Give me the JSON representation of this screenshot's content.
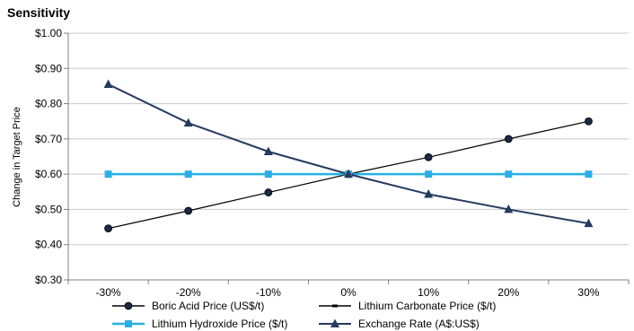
{
  "chart_data": {
    "type": "line",
    "title": "Sensitivity",
    "xlabel": "",
    "ylabel": "Change in Target Price",
    "categories": [
      "-30%",
      "-20%",
      "-10%",
      "0%",
      "10%",
      "20%",
      "30%"
    ],
    "ylim": [
      0.3,
      1.0
    ],
    "yticks": [
      1.0,
      0.9,
      0.8,
      0.7,
      0.6,
      0.5,
      0.4,
      0.3
    ],
    "ytick_labels": [
      "$1.00",
      "$0.90",
      "$0.80",
      "$0.70",
      "$0.60",
      "$0.50",
      "$0.40",
      "$0.30"
    ],
    "grid": "horizontal",
    "legend_position": "bottom",
    "series": [
      {
        "name": "Boric Acid Price (US$/t)",
        "color": "#000000",
        "marker": "circle",
        "marker_color": "#1b2a44",
        "values": [
          0.446,
          0.496,
          0.548,
          0.6,
          0.648,
          0.7,
          0.75
        ]
      },
      {
        "name": "Lithium Carbonate Price ($/t)",
        "color": "#000000",
        "marker": "dash",
        "values": [
          0.6,
          0.6,
          0.6,
          0.6,
          0.6,
          0.6,
          0.6
        ]
      },
      {
        "name": "Lithium Hydroxide Price ($/t)",
        "color": "#27b0e6",
        "marker": "square",
        "values": [
          0.6,
          0.6,
          0.6,
          0.6,
          0.6,
          0.6,
          0.6
        ]
      },
      {
        "name": "Exchange Rate (A$:US$)",
        "color": "#243a5e",
        "marker": "triangle",
        "values": [
          0.855,
          0.745,
          0.664,
          0.6,
          0.543,
          0.5,
          0.46
        ]
      }
    ]
  }
}
